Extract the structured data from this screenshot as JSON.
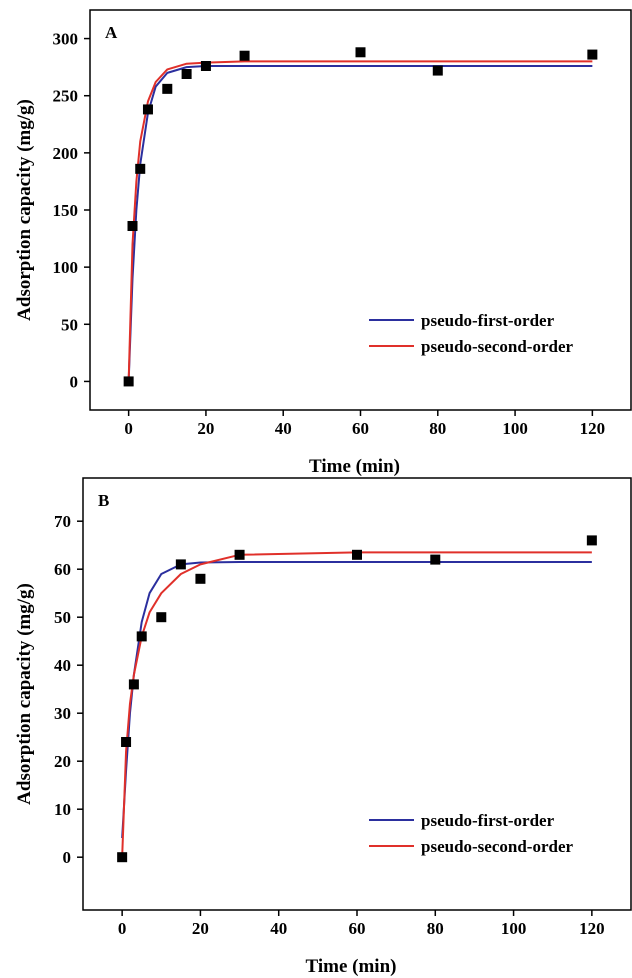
{
  "chart_data": [
    {
      "type": "scatter",
      "title": "A",
      "xlabel": "Time (min)",
      "ylabel": "Adsorption capacity (mg/g)",
      "xlim": [
        -10,
        130
      ],
      "ylim": [
        -25,
        325
      ],
      "xticks": [
        0,
        20,
        40,
        60,
        80,
        100,
        120
      ],
      "yticks": [
        0,
        50,
        100,
        150,
        200,
        250,
        300
      ],
      "legend": "lower right",
      "points": {
        "color": "#000000",
        "x": [
          0,
          1,
          3,
          5,
          10,
          15,
          20,
          30,
          60,
          80,
          120
        ],
        "values": [
          0,
          136,
          186,
          238,
          256,
          269,
          276,
          285,
          288,
          272,
          286
        ]
      },
      "series": [
        {
          "name": "pseudo-first-order",
          "color": "#2b2f9e",
          "x": [
            0,
            1,
            2,
            3,
            5,
            7,
            10,
            15,
            20,
            30,
            60,
            80,
            120
          ],
          "values": [
            0,
            90,
            150,
            190,
            235,
            258,
            270,
            275,
            276,
            276,
            276,
            276,
            276
          ]
        },
        {
          "name": "pseudo-second-order",
          "color": "#e0302a",
          "x": [
            0,
            1,
            2,
            3,
            5,
            7,
            10,
            15,
            20,
            30,
            60,
            80,
            120
          ],
          "values": [
            0,
            120,
            175,
            210,
            245,
            262,
            273,
            278,
            279,
            280,
            280,
            280,
            280
          ]
        }
      ]
    },
    {
      "type": "scatter",
      "title": "B",
      "xlabel": "Time (min)",
      "ylabel": "Adsorption capacity (mg/g)",
      "xlim": [
        -10,
        130
      ],
      "ylim": [
        -11,
        79
      ],
      "xticks": [
        0,
        20,
        40,
        60,
        80,
        100,
        120
      ],
      "yticks": [
        0,
        10,
        20,
        30,
        40,
        50,
        60,
        70
      ],
      "legend": "lower right",
      "points": {
        "color": "#000000",
        "x": [
          0,
          1,
          3,
          5,
          10,
          15,
          20,
          30,
          60,
          80,
          120
        ],
        "values": [
          0,
          24,
          36,
          46,
          50,
          61,
          58,
          63,
          63,
          62,
          66
        ]
      },
      "series": [
        {
          "name": "pseudo-first-order",
          "color": "#2b2f9e",
          "x": [
            0,
            1,
            2,
            3,
            5,
            7,
            10,
            15,
            20,
            30,
            60,
            80,
            120
          ],
          "values": [
            4,
            18,
            30,
            38,
            49,
            55,
            59,
            61,
            61.4,
            61.5,
            61.5,
            61.5,
            61.5
          ]
        },
        {
          "name": "pseudo-second-order",
          "color": "#e0302a",
          "x": [
            0,
            1,
            2,
            3,
            5,
            7,
            10,
            15,
            20,
            30,
            60,
            80,
            120
          ],
          "values": [
            0,
            22,
            32,
            38,
            46,
            51,
            55,
            59,
            61,
            63,
            63.5,
            63.5,
            63.5
          ]
        }
      ]
    }
  ]
}
